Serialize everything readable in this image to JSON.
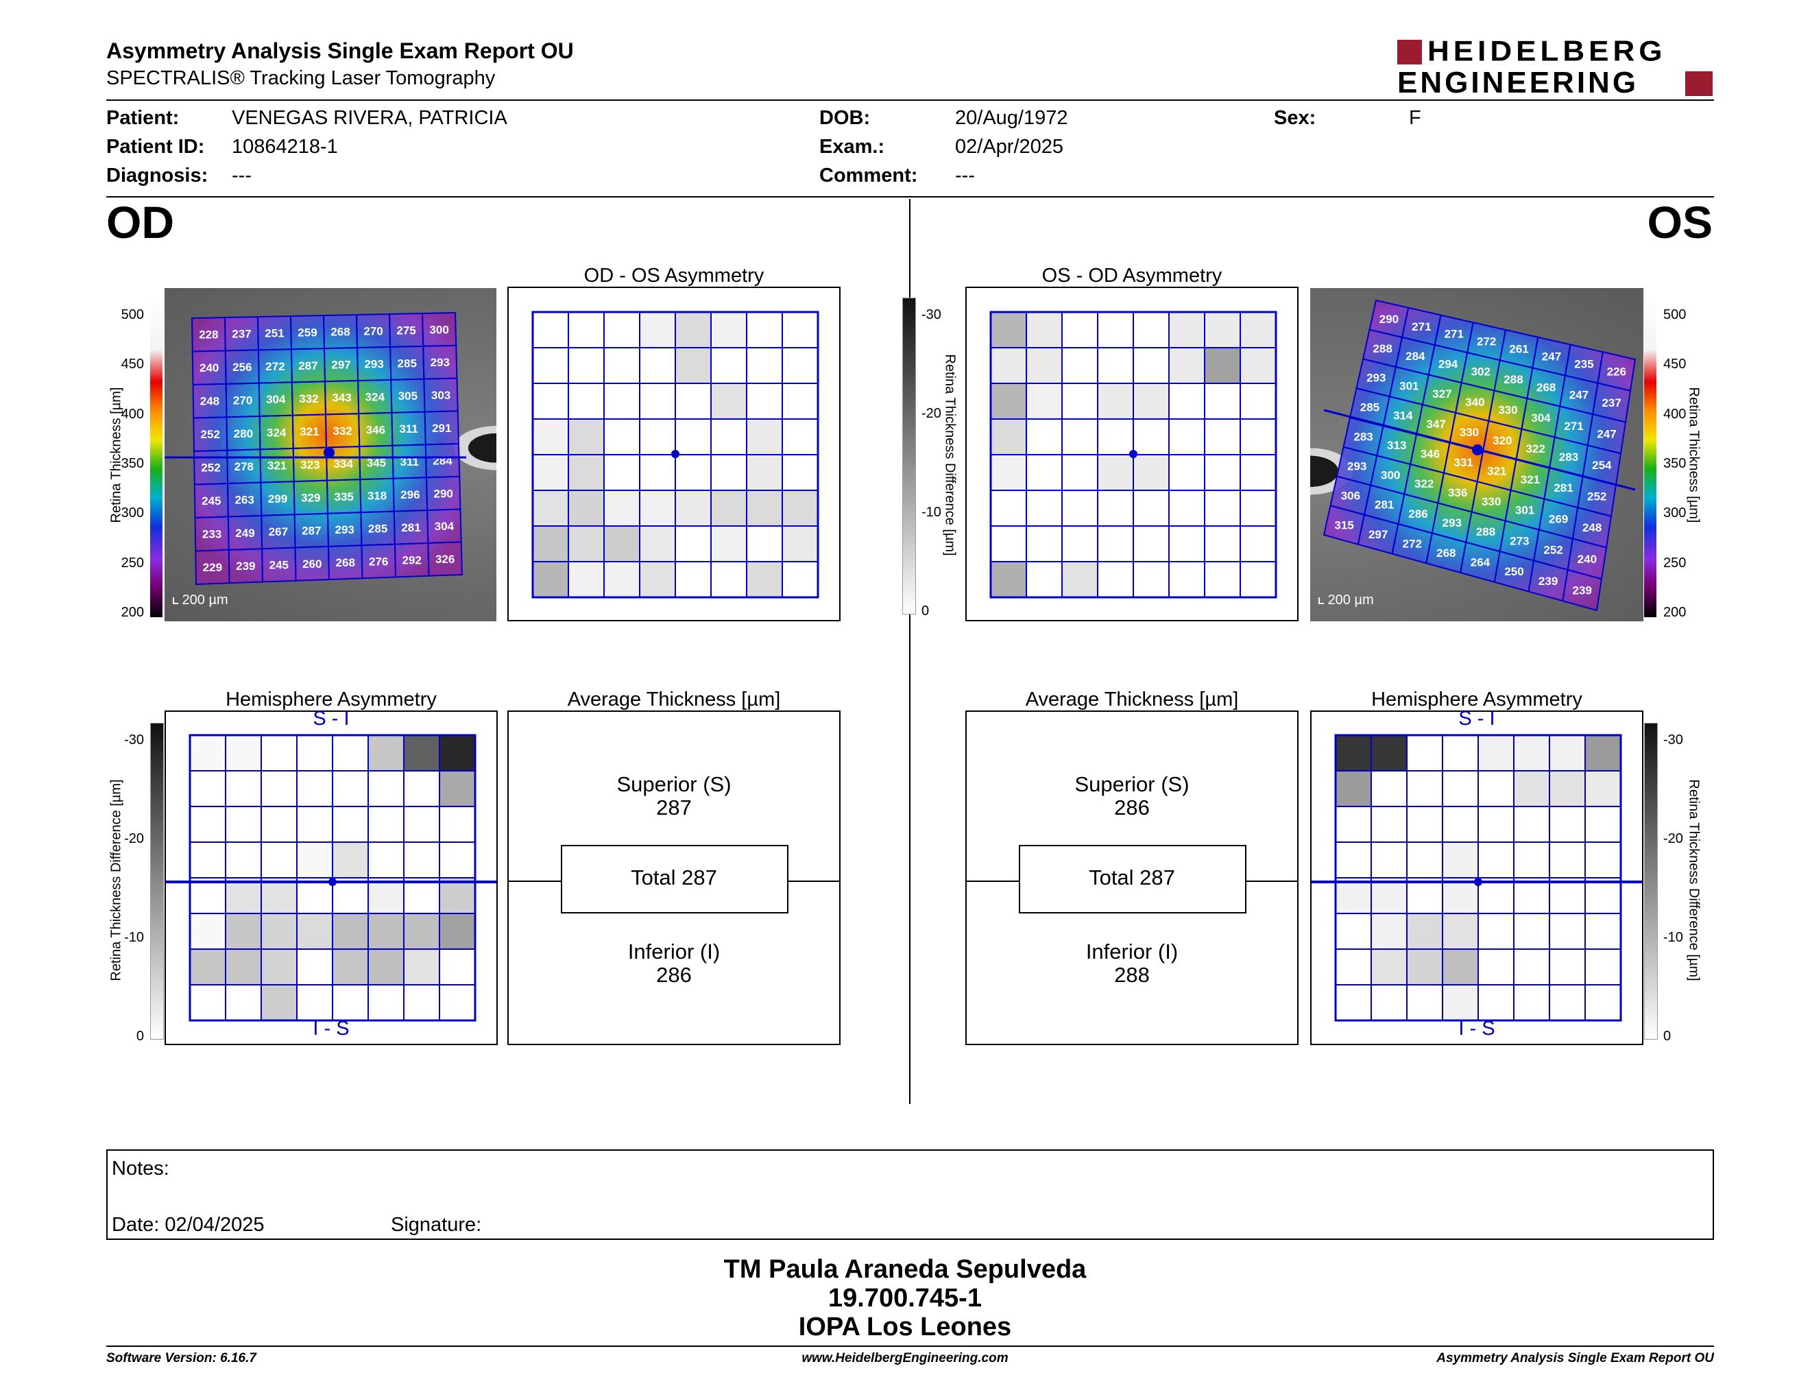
{
  "header": {
    "title": "Asymmetry Analysis Single Exam Report OU",
    "subtitle": "SPECTRALIS® Tracking Laser Tomography",
    "logo_line1": "HEIDELBERG",
    "logo_line2": "ENGINEERING"
  },
  "patient": {
    "patient_label": "Patient:",
    "patient_value": "VENEGAS RIVERA, PATRICIA",
    "id_label": "Patient ID:",
    "id_value": "10864218-1",
    "diag_label": "Diagnosis:",
    "diag_value": "---",
    "dob_label": "DOB:",
    "dob_value": "20/Aug/1972",
    "exam_label": "Exam.:",
    "exam_value": "02/Apr/2025",
    "comment_label": "Comment:",
    "comment_value": "---",
    "sex_label": "Sex:",
    "sex_value": "F"
  },
  "eyes": {
    "od": "OD",
    "os": "OS"
  },
  "colors": {
    "grid_blue": "#0000cc",
    "brand_red": "#9b1b30"
  },
  "thickness_scale": {
    "label": "Retina  Thickness [µm]",
    "ticks": [
      "500",
      "450",
      "400",
      "350",
      "300",
      "250",
      "200"
    ]
  },
  "difference_scale": {
    "label": "Retina Thickness Difference [µm]",
    "ticks": [
      "-30",
      "-20",
      "-10",
      "0"
    ]
  },
  "od": {
    "scale_bar": "200 µm",
    "thickness": [
      [
        228,
        237,
        251,
        259,
        268,
        270,
        275,
        300
      ],
      [
        240,
        256,
        272,
        287,
        297,
        293,
        285,
        293
      ],
      [
        248,
        270,
        304,
        332,
        343,
        324,
        305,
        303
      ],
      [
        252,
        280,
        324,
        321,
        332,
        346,
        311,
        291
      ],
      [
        252,
        278,
        321,
        323,
        334,
        345,
        311,
        284
      ],
      [
        245,
        263,
        299,
        329,
        335,
        318,
        296,
        290
      ],
      [
        233,
        249,
        267,
        287,
        293,
        285,
        281,
        304
      ],
      [
        229,
        239,
        245,
        260,
        268,
        276,
        292,
        326
      ]
    ],
    "asym_title": "OD - OS Asymmetry",
    "asym_diff": [
      [
        0,
        0,
        0,
        2,
        5,
        2,
        0,
        0
      ],
      [
        0,
        0,
        0,
        0,
        5,
        0,
        0,
        0
      ],
      [
        0,
        0,
        0,
        0,
        0,
        4,
        0,
        0
      ],
      [
        2,
        5,
        0,
        0,
        0,
        0,
        3,
        0
      ],
      [
        2,
        5,
        0,
        0,
        0,
        0,
        3,
        0
      ],
      [
        4,
        6,
        2,
        2,
        3,
        5,
        5,
        5
      ],
      [
        8,
        5,
        7,
        3,
        0,
        2,
        0,
        3
      ],
      [
        10,
        2,
        2,
        4,
        0,
        0,
        5,
        0
      ]
    ],
    "hemi_title": "Hemisphere Asymmetry",
    "hemi_top": "S - I",
    "hemi_bottom": "I - S",
    "hemi_diff": [
      [
        1,
        1,
        0,
        0,
        0,
        8,
        22,
        30
      ],
      [
        0,
        0,
        0,
        0,
        0,
        0,
        0,
        12
      ],
      [
        0,
        0,
        0,
        0,
        0,
        0,
        0,
        0
      ],
      [
        0,
        0,
        0,
        1,
        4,
        0,
        0,
        0
      ],
      [
        0,
        4,
        4,
        0,
        0,
        2,
        0,
        7
      ],
      [
        1,
        8,
        6,
        5,
        9,
        9,
        9,
        13
      ],
      [
        8,
        8,
        6,
        0,
        8,
        9,
        4,
        0
      ],
      [
        0,
        0,
        7,
        0,
        0,
        0,
        0,
        0
      ]
    ],
    "avg_title": "Average Thickness [µm]",
    "superior_label": "Superior (S)",
    "superior_value": "287",
    "total_label": "Total 287",
    "inferior_label": "Inferior (I)",
    "inferior_value": "286"
  },
  "os": {
    "scale_bar": "200 µm",
    "thickness": [
      [
        290,
        271,
        271,
        272,
        261,
        247,
        235,
        226
      ],
      [
        288,
        284,
        294,
        302,
        288,
        268,
        247,
        237
      ],
      [
        293,
        301,
        327,
        340,
        330,
        304,
        271,
        247
      ],
      [
        285,
        314,
        347,
        330,
        320,
        322,
        283,
        254
      ],
      [
        283,
        313,
        346,
        331,
        321,
        321,
        281,
        252
      ],
      [
        293,
        300,
        322,
        336,
        330,
        301,
        269,
        248
      ],
      [
        306,
        281,
        286,
        293,
        288,
        273,
        252,
        240
      ],
      [
        315,
        297,
        272,
        268,
        264,
        250,
        239,
        239
      ]
    ],
    "asym_title": "OS - OD Asymmetry",
    "asym_diff": [
      [
        10,
        3,
        0,
        0,
        0,
        3,
        3,
        3
      ],
      [
        3,
        3,
        0,
        0,
        0,
        3,
        13,
        3
      ],
      [
        10,
        2,
        0,
        3,
        3,
        0,
        0,
        0
      ],
      [
        5,
        0,
        0,
        0,
        0,
        0,
        0,
        0
      ],
      [
        2,
        0,
        0,
        3,
        3,
        0,
        0,
        0
      ],
      [
        0,
        0,
        0,
        0,
        0,
        0,
        0,
        0
      ],
      [
        0,
        0,
        0,
        0,
        0,
        0,
        0,
        0
      ],
      [
        11,
        0,
        4,
        0,
        0,
        0,
        0,
        0
      ]
    ],
    "hemi_title": "Hemisphere Asymmetry",
    "hemi_top": "S - I",
    "hemi_bottom": "I - S",
    "hemi_diff": [
      [
        28,
        28,
        0,
        0,
        2,
        2,
        2,
        14
      ],
      [
        14,
        0,
        0,
        0,
        0,
        4,
        4,
        3
      ],
      [
        0,
        0,
        0,
        0,
        0,
        0,
        0,
        0
      ],
      [
        0,
        0,
        0,
        2,
        0,
        0,
        0,
        0
      ],
      [
        2,
        2,
        0,
        2,
        0,
        0,
        0,
        0
      ],
      [
        0,
        2,
        5,
        4,
        0,
        0,
        0,
        0
      ],
      [
        0,
        4,
        6,
        9,
        0,
        0,
        0,
        0
      ],
      [
        0,
        0,
        0,
        2,
        0,
        0,
        0,
        0
      ]
    ],
    "avg_title": "Average Thickness [µm]",
    "superior_label": "Superior (S)",
    "superior_value": "286",
    "total_label": "Total 287",
    "inferior_label": "Inferior (I)",
    "inferior_value": "288"
  },
  "notes": {
    "notes_label": "Notes:",
    "date_label": "Date: 02/04/2025",
    "signature_label": "Signature:"
  },
  "signature_block": {
    "name": "TM Paula Araneda Sepulveda",
    "id": "19.700.745-1",
    "place": "IOPA Los Leones"
  },
  "footer": {
    "software": "Software Version: 6.16.7",
    "website": "www.HeidelbergEngineering.com",
    "report": "Asymmetry Analysis Single Exam Report OU"
  }
}
